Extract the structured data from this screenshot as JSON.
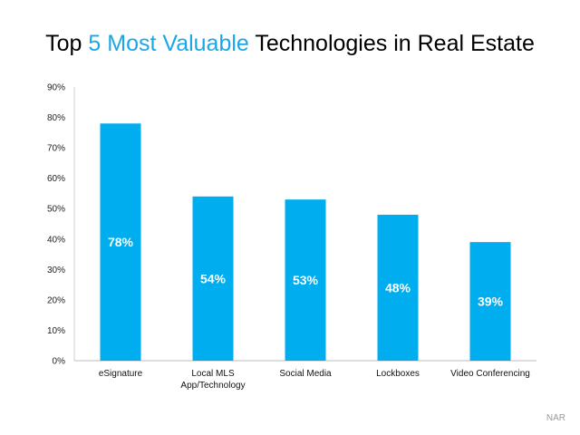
{
  "title": {
    "prefix": "Top ",
    "highlight": "5 Most Valuable",
    "suffix": " Technologies in Real Estate",
    "highlight_color": "#1aa7e8"
  },
  "source": "NAR",
  "chart_data": {
    "type": "bar",
    "categories": [
      "eSignature",
      "Local MLS App/Technology",
      "Social Media",
      "Lockboxes",
      "Video Conferencing"
    ],
    "category_lines": [
      [
        "eSignature"
      ],
      [
        "Local MLS",
        "App/Technology"
      ],
      [
        "Social Media"
      ],
      [
        "Lockboxes"
      ],
      [
        "Video Conferencing"
      ]
    ],
    "values": [
      78,
      54,
      53,
      48,
      39
    ],
    "data_labels": [
      "78%",
      "54%",
      "53%",
      "48%",
      "39%"
    ],
    "ylim": [
      0,
      90
    ],
    "yticks": [
      0,
      10,
      20,
      30,
      40,
      50,
      60,
      70,
      80,
      90
    ],
    "ytick_labels": [
      "0%",
      "10%",
      "20%",
      "30%",
      "40%",
      "50%",
      "60%",
      "70%",
      "80%",
      "90%"
    ],
    "bar_color": "#00adee",
    "xlabel": "",
    "ylabel": "",
    "grid": false,
    "legend": "none"
  }
}
